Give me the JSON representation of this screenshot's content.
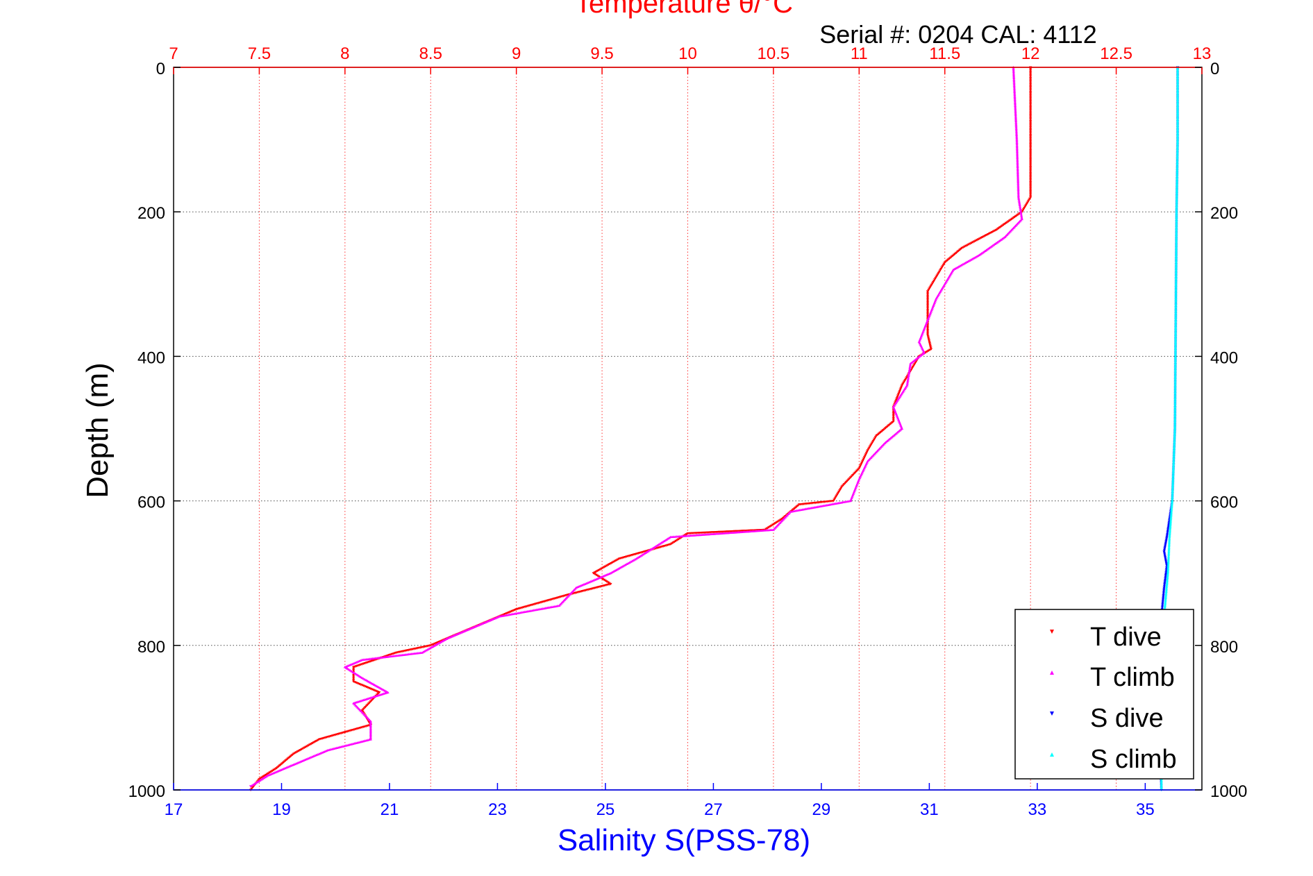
{
  "chart_data": {
    "type": "scatter",
    "title": "Temperature θ/°C",
    "subtitle": "Serial #: 0204  CAL: 4112",
    "ylabel": "Depth (m)",
    "xlabel": "Salinity S(PSS-78)",
    "y_axis": {
      "range": [
        0,
        1000
      ],
      "reversed": true,
      "ticks": [
        0,
        200,
        400,
        600,
        800,
        1000
      ],
      "tick_labels": [
        "0",
        "200",
        "400",
        "600",
        "800",
        "1000"
      ]
    },
    "x_top_axis": {
      "label": "Temperature θ/°C",
      "range": [
        7,
        13
      ],
      "ticks": [
        7,
        7.5,
        8,
        8.5,
        9,
        9.5,
        10,
        10.5,
        11,
        11.5,
        12,
        12.5,
        13
      ],
      "tick_labels": [
        "7",
        "7.5",
        "8",
        "8.5",
        "9",
        "9.5",
        "10",
        "10.5",
        "11",
        "11.5",
        "12",
        "12.5",
        "13"
      ],
      "color": "#ff0000"
    },
    "x_bottom_axis": {
      "label": "Salinity S(PSS-78)",
      "range": [
        17,
        36.05
      ],
      "ticks": [
        17,
        19,
        21,
        23,
        25,
        27,
        29,
        31,
        33,
        35
      ],
      "tick_labels": [
        "17",
        "19",
        "21",
        "23",
        "25",
        "27",
        "29",
        "31",
        "33",
        "35"
      ],
      "color": "#0000ff"
    },
    "grid": true,
    "legend_position": "bottom-right",
    "series": [
      {
        "name": "T dive",
        "axis": "temperature",
        "color": "#ff0000",
        "points": [
          [
            12.0,
            0
          ],
          [
            12.0,
            100
          ],
          [
            12.0,
            180
          ],
          [
            11.95,
            200
          ],
          [
            11.8,
            225
          ],
          [
            11.6,
            250
          ],
          [
            11.5,
            270
          ],
          [
            11.45,
            290
          ],
          [
            11.4,
            310
          ],
          [
            11.4,
            340
          ],
          [
            11.4,
            370
          ],
          [
            11.42,
            390
          ],
          [
            11.35,
            400
          ],
          [
            11.3,
            420
          ],
          [
            11.25,
            440
          ],
          [
            11.2,
            470
          ],
          [
            11.2,
            490
          ],
          [
            11.1,
            510
          ],
          [
            11.05,
            530
          ],
          [
            11.0,
            555
          ],
          [
            10.9,
            580
          ],
          [
            10.85,
            600
          ],
          [
            10.65,
            605
          ],
          [
            10.55,
            625
          ],
          [
            10.45,
            640
          ],
          [
            10.0,
            645
          ],
          [
            9.9,
            660
          ],
          [
            9.6,
            680
          ],
          [
            9.45,
            700
          ],
          [
            9.55,
            715
          ],
          [
            9.3,
            730
          ],
          [
            9.0,
            750
          ],
          [
            8.7,
            780
          ],
          [
            8.5,
            800
          ],
          [
            8.3,
            810
          ],
          [
            8.05,
            830
          ],
          [
            8.05,
            850
          ],
          [
            8.2,
            865
          ],
          [
            8.1,
            890
          ],
          [
            8.15,
            910
          ],
          [
            7.85,
            930
          ],
          [
            7.7,
            950
          ],
          [
            7.6,
            970
          ],
          [
            7.5,
            985
          ],
          [
            7.45,
            1000
          ]
        ]
      },
      {
        "name": "T climb",
        "axis": "temperature",
        "color": "#ff00ff",
        "points": [
          [
            11.9,
            0
          ],
          [
            11.92,
            100
          ],
          [
            11.93,
            180
          ],
          [
            11.95,
            210
          ],
          [
            11.85,
            235
          ],
          [
            11.7,
            260
          ],
          [
            11.55,
            280
          ],
          [
            11.5,
            300
          ],
          [
            11.45,
            320
          ],
          [
            11.4,
            350
          ],
          [
            11.35,
            380
          ],
          [
            11.38,
            395
          ],
          [
            11.3,
            410
          ],
          [
            11.28,
            440
          ],
          [
            11.2,
            470
          ],
          [
            11.25,
            500
          ],
          [
            11.15,
            520
          ],
          [
            11.05,
            545
          ],
          [
            11.0,
            570
          ],
          [
            10.95,
            600
          ],
          [
            10.6,
            615
          ],
          [
            10.5,
            640
          ],
          [
            10.2,
            645
          ],
          [
            9.9,
            650
          ],
          [
            9.8,
            665
          ],
          [
            9.7,
            680
          ],
          [
            9.55,
            700
          ],
          [
            9.35,
            720
          ],
          [
            9.25,
            745
          ],
          [
            8.9,
            760
          ],
          [
            8.6,
            790
          ],
          [
            8.45,
            810
          ],
          [
            8.1,
            820
          ],
          [
            8.0,
            830
          ],
          [
            8.1,
            845
          ],
          [
            8.25,
            865
          ],
          [
            8.05,
            880
          ],
          [
            8.15,
            905
          ],
          [
            8.15,
            930
          ],
          [
            7.9,
            945
          ],
          [
            7.75,
            960
          ],
          [
            7.55,
            980
          ],
          [
            7.45,
            995
          ]
        ]
      },
      {
        "name": "S dive",
        "axis": "salinity",
        "color": "#0000ff",
        "points": [
          [
            35.6,
            0
          ],
          [
            35.6,
            100
          ],
          [
            35.58,
            200
          ],
          [
            35.57,
            300
          ],
          [
            35.56,
            400
          ],
          [
            35.55,
            500
          ],
          [
            35.5,
            600
          ],
          [
            35.4,
            650
          ],
          [
            35.35,
            670
          ],
          [
            35.4,
            690
          ],
          [
            35.35,
            720
          ],
          [
            35.3,
            760
          ],
          [
            35.25,
            800
          ],
          [
            35.25,
            900
          ],
          [
            35.3,
            1000
          ]
        ]
      },
      {
        "name": "S climb",
        "axis": "salinity",
        "color": "#00ffff",
        "points": [
          [
            35.6,
            0
          ],
          [
            35.6,
            100
          ],
          [
            35.58,
            200
          ],
          [
            35.57,
            300
          ],
          [
            35.56,
            400
          ],
          [
            35.55,
            500
          ],
          [
            35.5,
            600
          ],
          [
            35.45,
            650
          ],
          [
            35.42,
            700
          ],
          [
            35.35,
            760
          ],
          [
            35.3,
            800
          ],
          [
            35.3,
            900
          ],
          [
            35.3,
            1000
          ]
        ]
      }
    ]
  }
}
